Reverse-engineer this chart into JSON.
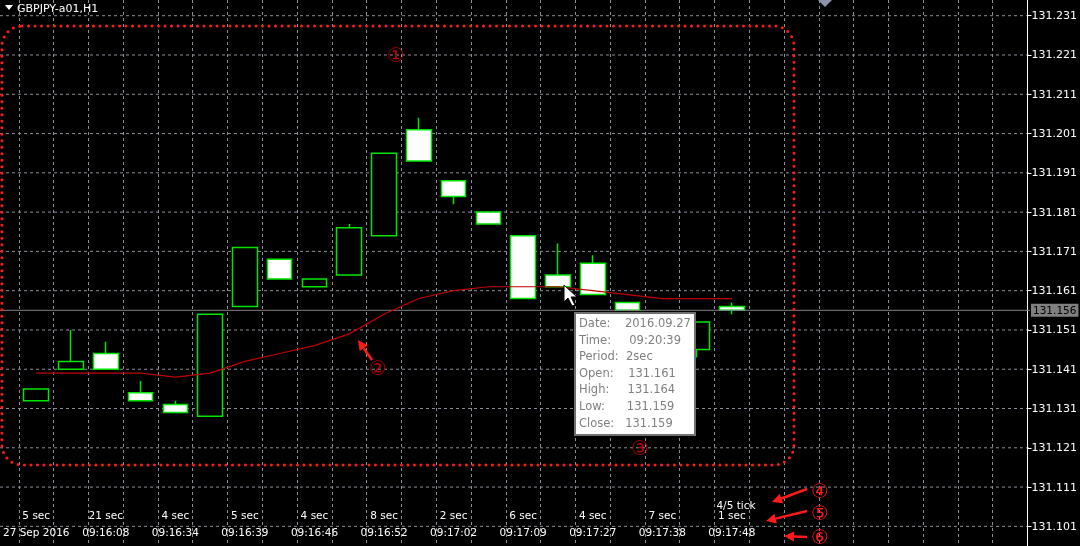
{
  "chart_data": {
    "type": "candlestick",
    "title": "GBPJPY-a01,H1",
    "categories": [
      "5 sec\n27 Sep 2016",
      null,
      "21 sec\n09:16:08",
      null,
      "4 sec\n09:16:34",
      null,
      "5 sec\n09:16:39",
      null,
      "4 sec\n09:16:46",
      null,
      "8 sec\n09:16:52",
      null,
      "2 sec\n09:17:02",
      null,
      "6 sec\n09:17:09",
      null,
      "4 sec\n09:17:27",
      null,
      "7 sec\n09:17:38",
      null,
      "1 sec\n09:17:48",
      null,
      null,
      null,
      null,
      null,
      null,
      null,
      null
    ],
    "ohlc": [
      [
        131.133,
        131.136,
        131.133,
        131.136
      ],
      [
        131.141,
        131.151,
        131.141,
        131.143
      ],
      [
        131.145,
        131.148,
        131.141,
        131.141
      ],
      [
        131.135,
        131.138,
        131.133,
        131.133
      ],
      [
        131.132,
        131.133,
        131.13,
        131.13
      ],
      [
        131.129,
        131.155,
        131.129,
        131.155
      ],
      [
        131.157,
        131.172,
        131.157,
        131.172
      ],
      [
        131.169,
        131.169,
        131.164,
        131.164
      ],
      [
        131.162,
        131.164,
        131.162,
        131.164
      ],
      [
        131.165,
        131.178,
        131.165,
        131.177
      ],
      [
        131.175,
        131.196,
        131.175,
        131.196
      ],
      [
        131.202,
        131.205,
        131.194,
        131.194
      ],
      [
        131.189,
        131.189,
        131.183,
        131.185
      ],
      [
        131.181,
        131.181,
        131.178,
        131.178
      ],
      [
        131.175,
        131.175,
        131.159,
        131.159
      ],
      [
        131.165,
        131.173,
        131.162,
        131.162
      ],
      [
        131.168,
        131.17,
        131.16,
        131.16
      ],
      [
        131.158,
        131.158,
        131.156,
        131.156
      ],
      null,
      [
        131.146,
        131.153,
        131.144,
        131.153
      ],
      [
        131.157,
        131.158,
        131.155,
        131.156
      ],
      null,
      null,
      null,
      null,
      null,
      null,
      null,
      null
    ],
    "color": "#00e600",
    "series": [
      {
        "type": "line",
        "color": "#c00000",
        "values": [
          131.14,
          131.14,
          131.14,
          131.14,
          131.139,
          131.14,
          131.143,
          131.145,
          131.147,
          131.15,
          131.155,
          131.159,
          131.161,
          131.162,
          131.162,
          131.162,
          131.161,
          131.16,
          131.159,
          131.159,
          131.159,
          null,
          null,
          null,
          null,
          null,
          null,
          null,
          null
        ]
      }
    ],
    "ylim": [
      131.096,
      131.235
    ],
    "yticks": [
      131.101,
      131.111,
      131.121,
      131.131,
      131.141,
      131.151,
      131.161,
      131.171,
      131.181,
      131.191,
      131.201,
      131.211,
      131.221,
      131.231
    ],
    "grid": true,
    "marker": "none",
    "line_style": "solid",
    "ref_lines": [
      {
        "axis": "y",
        "value": 131.156,
        "label": "131.156",
        "color": "#808080"
      }
    ],
    "annotations": [
      "①",
      "②",
      "③",
      "④",
      "⑤",
      "⑥",
      "4/5 tick",
      "Date:    2016.09.27\nTime:     09:20:39\nPeriod:  2sec\nOpen:    131.161\nHigh:     131.164\nLow:      131.159\nClose:   131.159"
    ]
  }
}
